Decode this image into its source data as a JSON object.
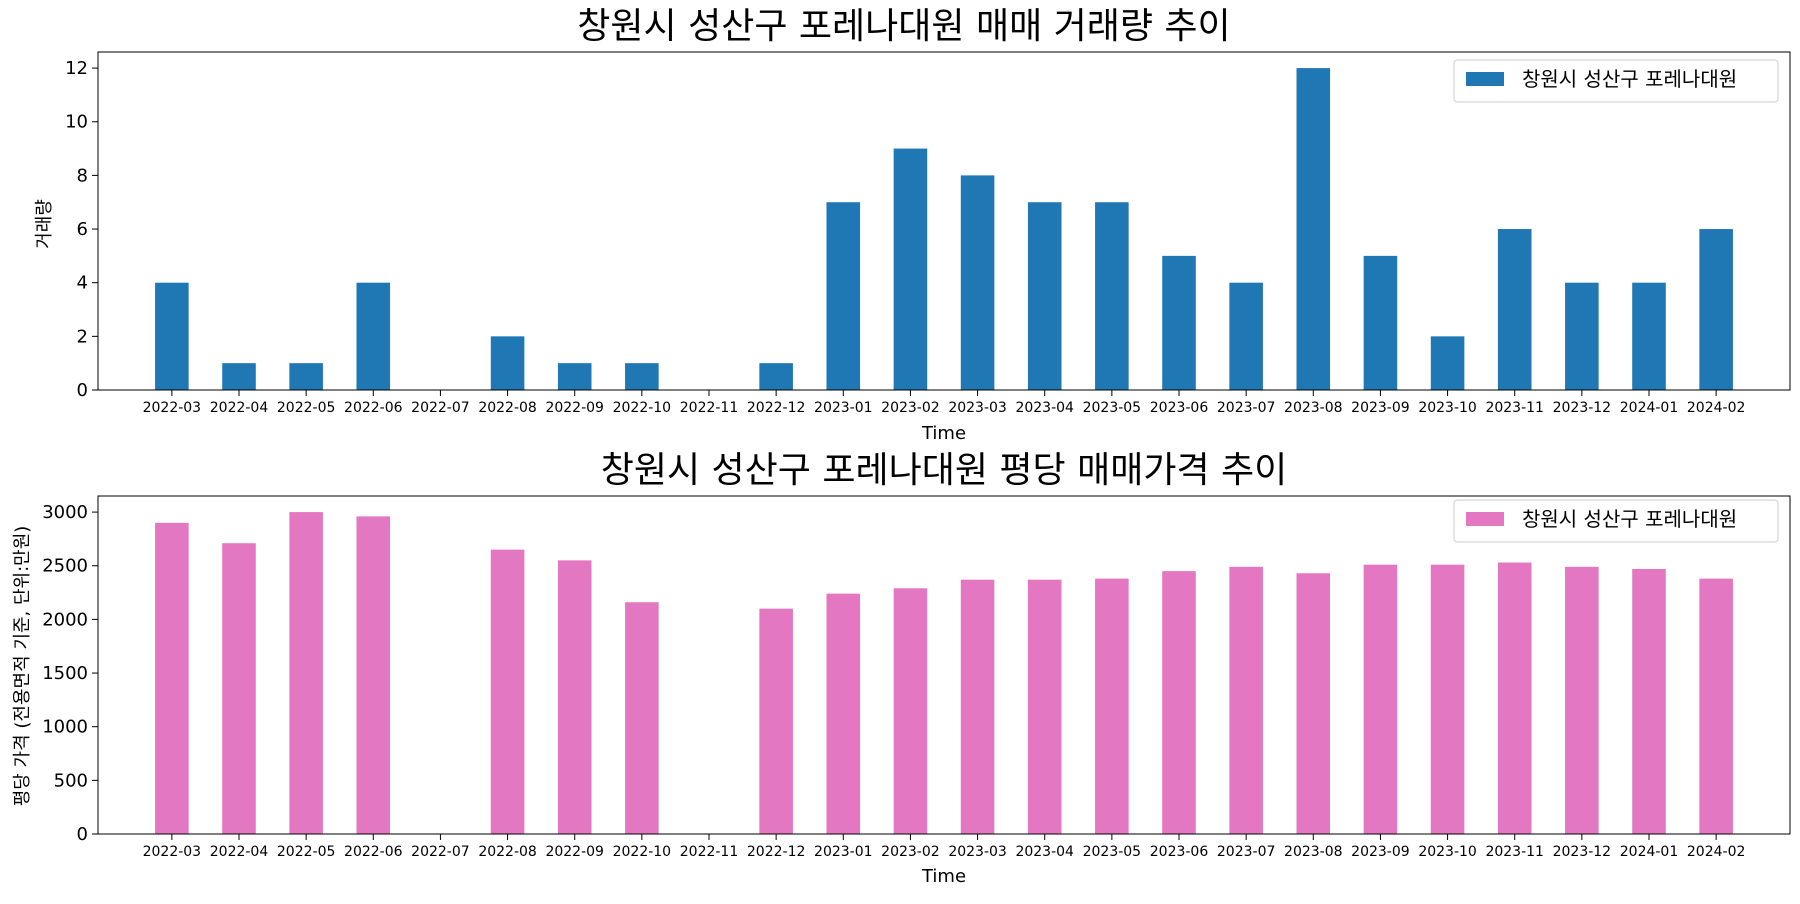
{
  "chart_data": [
    {
      "type": "bar",
      "title": "창원시 성산구 포레나대원 매매 거래량 추이",
      "xlabel": "Time",
      "ylabel": "거래량",
      "categories": [
        "2022-03",
        "2022-04",
        "2022-05",
        "2022-06",
        "2022-07",
        "2022-08",
        "2022-09",
        "2022-10",
        "2022-11",
        "2022-12",
        "2023-01",
        "2023-02",
        "2023-03",
        "2023-04",
        "2023-05",
        "2023-06",
        "2023-07",
        "2023-08",
        "2023-09",
        "2023-10",
        "2023-11",
        "2023-12",
        "2024-01",
        "2024-02"
      ],
      "series": [
        {
          "name": "창원시 성산구 포레나대원",
          "color": "#1f77b4",
          "values": [
            4,
            1,
            1,
            4,
            0,
            2,
            1,
            1,
            0,
            1,
            7,
            9,
            8,
            7,
            7,
            5,
            4,
            12,
            5,
            2,
            6,
            4,
            4,
            6
          ]
        }
      ],
      "ylim": [
        0,
        12.6
      ],
      "yticks": [
        0,
        2,
        4,
        6,
        8,
        10,
        12
      ],
      "legend": "top-right",
      "grid": false
    },
    {
      "type": "bar",
      "title": "창원시 성산구 포레나대원 평당 매매가격 추이",
      "xlabel": "Time",
      "ylabel": "평당 가격 (전용면적 기준, 단위:만원)",
      "categories": [
        "2022-03",
        "2022-04",
        "2022-05",
        "2022-06",
        "2022-07",
        "2022-08",
        "2022-09",
        "2022-10",
        "2022-11",
        "2022-12",
        "2023-01",
        "2023-02",
        "2023-03",
        "2023-04",
        "2023-05",
        "2023-06",
        "2023-07",
        "2023-08",
        "2023-09",
        "2023-10",
        "2023-11",
        "2023-12",
        "2024-01",
        "2024-02"
      ],
      "series": [
        {
          "name": "창원시 성산구 포레나대원",
          "color": "#e377c2",
          "values": [
            2900,
            2710,
            3000,
            2960,
            0,
            2650,
            2550,
            2160,
            0,
            2100,
            2240,
            2290,
            2370,
            2370,
            2380,
            2450,
            2490,
            2430,
            2510,
            2510,
            2530,
            2490,
            2470,
            2380
          ]
        }
      ],
      "ylim": [
        0,
        3150
      ],
      "yticks": [
        0,
        500,
        1000,
        1500,
        2000,
        2500,
        3000
      ],
      "legend": "top-right",
      "grid": false
    }
  ]
}
